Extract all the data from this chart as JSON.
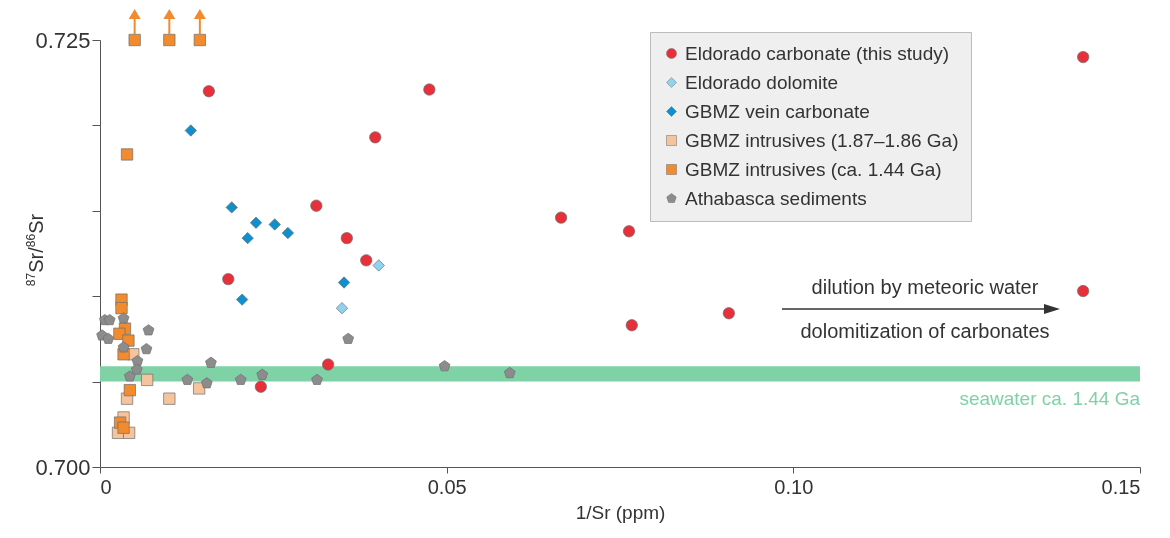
{
  "chart_data": {
    "type": "scatter",
    "xlabel": "1/Sr (ppm)",
    "ylabel": "$^{87}$Sr/$^{86}$Sr",
    "xlim": [
      0,
      0.15
    ],
    "ylim": [
      0.7,
      0.725
    ],
    "xticks": [
      0,
      0.05,
      {
        "value": 0.1,
        "label": "0.10"
      },
      0.15
    ],
    "yticks": [
      {
        "value": 0.7,
        "label": "0.700"
      },
      {
        "value": 0.705,
        "label": null
      },
      {
        "value": 0.71,
        "label": null
      },
      {
        "value": 0.715,
        "label": null
      },
      {
        "value": 0.72,
        "label": null
      },
      0.725
    ],
    "legend": "top right",
    "series": [
      {
        "name": "Eldorado carbonate (this study)",
        "color": "#e8303a",
        "marker": "circle",
        "x": [
          0.0157,
          0.0475,
          0.0397,
          0.0312,
          0.0356,
          0.0384,
          0.0185,
          0.0329,
          0.0232,
          0.0665,
          0.0763,
          0.1418,
          0.1418,
          0.0767,
          0.0907
        ],
        "values": [
          0.722,
          0.7221,
          0.7193,
          0.7153,
          0.7134,
          0.7121,
          0.711,
          0.706,
          0.7047,
          0.7146,
          0.7138,
          0.724,
          0.7103,
          0.7083,
          0.709
        ]
      },
      {
        "name": "Eldorado dolomite",
        "color": "#8fd3f2",
        "marker": "diamond",
        "x": [
          0.0402,
          0.0349
        ],
        "values": [
          0.7118,
          0.7093
        ]
      },
      {
        "name": "GBMZ vein carbonate",
        "color": "#0e8fd0",
        "marker": "diamond",
        "x": [
          0.0131,
          0.019,
          0.0225,
          0.0213,
          0.0252,
          0.0271,
          0.0205,
          0.0352
        ],
        "values": [
          0.7197,
          0.7152,
          0.7143,
          0.7134,
          0.7142,
          0.7137,
          0.7098,
          0.7108
        ]
      },
      {
        "name": "GBMZ intrusives (1.87–1.86 Ga)",
        "color": "#f5c49c",
        "marker": "square",
        "x": [
          0.0048,
          0.0068,
          0.0039,
          0.01,
          0.0143,
          0.0034,
          0.0026,
          0.0042
        ],
        "values": [
          0.7066,
          0.7051,
          0.704,
          0.704,
          0.7046,
          0.7029,
          0.702,
          0.702
        ]
      },
      {
        "name": "GBMZ intrusives (ca. 1.44 Ga)",
        "color": "#f28a2e",
        "marker": "square",
        "x": [
          0.005,
          0.01,
          0.0144,
          0.0039,
          0.0031,
          0.0031,
          0.0036,
          0.0028,
          0.0041,
          0.0034,
          0.0043,
          0.0029,
          0.0034
        ],
        "values": [
          0.725,
          0.725,
          0.725,
          0.7183,
          0.7098,
          0.7093,
          0.7081,
          0.7078,
          0.7074,
          0.7066,
          0.7045,
          0.7026,
          0.7023
        ]
      },
      {
        "name": "Athabasca sediments",
        "color": "#8c8c8c",
        "x": [
          0.0007,
          0.0014,
          0.0003,
          0.0012,
          0.0034,
          0.0034,
          0.007,
          0.0067,
          0.0054,
          0.0053,
          0.0043,
          0.016,
          0.0126,
          0.0154,
          0.0203,
          0.0234,
          0.0313,
          0.0358,
          0.0497,
          0.0591
        ],
        "values": [
          0.7086,
          0.7086,
          0.7077,
          0.7075,
          0.7087,
          0.707,
          0.708,
          0.7069,
          0.7062,
          0.7057,
          0.7053,
          0.7061,
          0.7051,
          0.7049,
          0.7051,
          0.7054,
          0.7051,
          0.7075,
          0.7059,
          0.7055
        ]
      }
    ],
    "bands": [
      {
        "axis": "y",
        "from": 0.705,
        "to": 0.7059,
        "label": "seawater ca. 1.44 Ga",
        "color": "#7fd1a6"
      }
    ],
    "annotations": [
      "dilution by meteoric water",
      "dolomitization of carbonates"
    ]
  }
}
